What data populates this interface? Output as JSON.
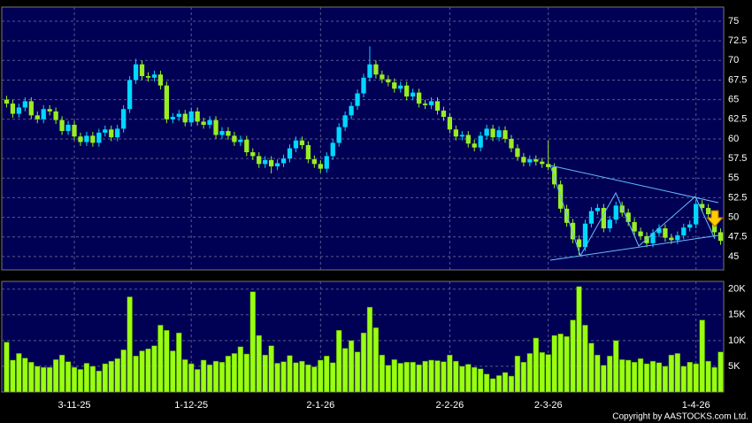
{
  "chart_data": [
    {
      "type": "candlestick",
      "categories": [
        null,
        null,
        null,
        null,
        null,
        null,
        null,
        null,
        null,
        null,
        null,
        "3-11-25",
        null,
        null,
        null,
        null,
        null,
        null,
        null,
        null,
        null,
        null,
        null,
        null,
        null,
        null,
        null,
        null,
        null,
        null,
        "1-12-25",
        null,
        null,
        null,
        null,
        null,
        null,
        null,
        null,
        null,
        null,
        null,
        null,
        null,
        null,
        null,
        null,
        null,
        null,
        null,
        null,
        "2-1-26",
        null,
        null,
        null,
        null,
        null,
        null,
        null,
        null,
        null,
        null,
        null,
        null,
        null,
        null,
        null,
        null,
        null,
        null,
        null,
        null,
        "2-2-26",
        null,
        null,
        null,
        null,
        null,
        null,
        null,
        null,
        null,
        null,
        null,
        null,
        null,
        null,
        null,
        "2-3-26",
        null,
        null,
        null,
        null,
        null,
        null,
        null,
        null,
        null,
        null,
        null,
        null,
        null,
        null,
        null,
        null,
        null,
        null,
        null,
        null,
        null,
        null,
        null,
        "1-4-26",
        null,
        null,
        null,
        null
      ],
      "open": [
        65,
        64.5,
        63.2,
        64,
        64.8,
        63,
        62.5,
        63.8,
        63.5,
        62.4,
        61,
        61.8,
        60.3,
        59.6,
        60.4,
        59.5,
        60.8,
        61.2,
        60.2,
        61.3,
        63.8,
        67.5,
        69.5,
        68,
        67.8,
        68.2,
        66.8,
        62.5,
        62.8,
        63.2,
        62.1,
        63.5,
        62.2,
        61.8,
        62.4,
        60.5,
        61,
        60.4,
        59.6,
        59.9,
        58.3,
        57.8,
        56.8,
        57.3,
        56.5,
        56.9,
        57.5,
        58.8,
        59.8,
        59.2,
        57.4,
        56.8,
        56.2,
        57.8,
        59.5,
        61.5,
        63,
        64.2,
        65.8,
        67.8,
        69.5,
        68.2,
        67.6,
        67.2,
        66.4,
        66.8,
        65.4,
        65.9,
        64.5,
        64.3,
        64.8,
        63.6,
        62.8,
        61.2,
        60.3,
        60.5,
        59.4,
        58.9,
        60.4,
        61.3,
        60.2,
        61.1,
        60,
        58.8,
        57.7,
        57,
        57.4,
        57.1,
        56.8,
        56.4,
        54.2,
        51.1,
        49.3,
        47.2,
        46.2,
        49.2,
        50.8,
        51.2,
        48.6,
        49.7,
        51.5,
        50.6,
        49.4,
        48.2,
        47.6,
        46.7,
        48,
        48.6,
        47.4,
        47.1,
        47.7,
        48.7,
        49.1,
        51.7,
        51.2,
        50.4,
        48.1
      ],
      "high": [
        65.5,
        65,
        64.5,
        65.3,
        65.3,
        63.5,
        64.3,
        64.3,
        64,
        62.9,
        62.3,
        62.3,
        60.8,
        60.9,
        60.9,
        61.3,
        61.7,
        61.7,
        61.8,
        64.3,
        68,
        70.2,
        70,
        68.5,
        68.7,
        68.7,
        67.3,
        63.3,
        63.7,
        63.7,
        64,
        64,
        62.7,
        62.9,
        62.9,
        61.5,
        61.5,
        60.9,
        60.4,
        60.4,
        58.8,
        58.3,
        57.8,
        57.8,
        57.4,
        58,
        59.3,
        60.3,
        60.3,
        59.7,
        57.9,
        57.3,
        58.3,
        60,
        62,
        63.5,
        64.7,
        66.3,
        68.3,
        71.8,
        70,
        68.7,
        68.1,
        67.7,
        67.3,
        67.3,
        66.4,
        66.4,
        65,
        65.3,
        65.3,
        64.1,
        63.3,
        61.7,
        61,
        61,
        59.9,
        60.9,
        61.8,
        61.8,
        61.6,
        61.6,
        60.5,
        59.3,
        58.2,
        57.9,
        57.9,
        57.6,
        59.8,
        56.9,
        54.7,
        51.6,
        49.8,
        47.7,
        49.7,
        51.3,
        51.7,
        51.7,
        50.2,
        52,
        52,
        51.1,
        49.9,
        48.7,
        48.1,
        48.5,
        49.1,
        49.1,
        47.9,
        48.2,
        49.2,
        49.6,
        52.2,
        52.2,
        51.7,
        50.9,
        48.6
      ],
      "low": [
        64,
        62.7,
        62.7,
        63.5,
        62.5,
        62,
        62,
        63,
        61.9,
        60.5,
        60.5,
        59.8,
        59.1,
        59.1,
        59,
        59,
        60.3,
        59.7,
        59.7,
        60.8,
        63.3,
        67,
        67.5,
        67.3,
        67.3,
        66.3,
        62,
        62,
        62.3,
        61.6,
        61.6,
        61.7,
        61.3,
        61.3,
        60,
        60,
        59.9,
        59.1,
        59.1,
        57.8,
        57.3,
        56.3,
        56.3,
        55.6,
        56,
        56.4,
        57,
        58.3,
        58.7,
        56.9,
        56.3,
        55.7,
        55.7,
        57.3,
        59,
        61,
        62.5,
        63.7,
        65.3,
        67.3,
        67.7,
        67.1,
        66.7,
        65.9,
        65.9,
        64.9,
        64.9,
        64,
        63.8,
        63.8,
        63.1,
        62.3,
        60.7,
        59.8,
        59.8,
        58.9,
        58.4,
        58.4,
        59.9,
        59.7,
        59.7,
        59.5,
        58.3,
        57.2,
        56.5,
        56.5,
        56.6,
        56.3,
        56,
        53.7,
        50.6,
        48.8,
        46.7,
        45.2,
        45.7,
        48.7,
        50.3,
        48.1,
        48.1,
        49.2,
        50.1,
        48.9,
        47.7,
        47.1,
        46.2,
        46.2,
        47.5,
        46.9,
        46.6,
        46.6,
        47.2,
        48.2,
        48.6,
        50.7,
        49.9,
        47.6,
        46.5
      ],
      "close": [
        64.5,
        63.2,
        64,
        64.8,
        63,
        62.5,
        63.8,
        63.5,
        62.4,
        61,
        61.8,
        60.3,
        59.6,
        60.4,
        59.5,
        60.8,
        61.2,
        60.2,
        61.3,
        63.8,
        67.5,
        69.5,
        68,
        67.8,
        68.2,
        66.8,
        62.5,
        62.8,
        63.2,
        62.1,
        63.5,
        62.2,
        61.8,
        62.4,
        60.5,
        61,
        60.4,
        59.6,
        59.9,
        58.3,
        57.8,
        56.8,
        57.3,
        56.5,
        56.9,
        57.5,
        58.8,
        59.8,
        59.2,
        57.4,
        56.8,
        56.2,
        57.8,
        59.5,
        61.5,
        63,
        64.2,
        65.8,
        67.8,
        69.5,
        68.2,
        67.6,
        67.2,
        66.4,
        66.8,
        65.4,
        65.9,
        64.5,
        64.3,
        64.8,
        63.6,
        62.8,
        61.2,
        60.3,
        60.5,
        59.4,
        58.9,
        60.4,
        61.3,
        60.2,
        61.1,
        60,
        58.8,
        57.7,
        57,
        57.4,
        57.1,
        56.8,
        56.4,
        54.2,
        51.1,
        49.3,
        47.2,
        46.2,
        49.2,
        50.8,
        51.2,
        48.6,
        49.7,
        51.5,
        50.6,
        49.4,
        48.2,
        47.6,
        46.7,
        48,
        48.6,
        47.4,
        47.1,
        47.7,
        48.7,
        49.1,
        51.7,
        51.2,
        50.4,
        48.1,
        47
      ],
      "up_color": "#00d8ff",
      "down_color": "#99ee22",
      "ylim": [
        43.3,
        76.8
      ],
      "yticks": [
        45,
        47.5,
        50,
        52.5,
        55,
        57.5,
        60,
        62.5,
        65,
        67.5,
        70,
        72.5,
        75
      ],
      "grid": true
    },
    {
      "type": "bar",
      "values": [
        9700,
        6200,
        7500,
        6600,
        5800,
        5000,
        4800,
        4800,
        6300,
        7200,
        5900,
        4800,
        4400,
        5600,
        5000,
        4100,
        5500,
        6000,
        6500,
        8200,
        18500,
        7000,
        8000,
        8400,
        9000,
        13000,
        12000,
        8000,
        11500,
        6300,
        5500,
        4400,
        6200,
        5300,
        6000,
        5800,
        7000,
        7500,
        8800,
        7400,
        19500,
        11000,
        7200,
        9000,
        5600,
        5900,
        7100,
        5700,
        6000,
        5300,
        4900,
        6200,
        7000,
        5700,
        12000,
        8500,
        10000,
        7800,
        11500,
        16500,
        12500,
        7200,
        5200,
        6300,
        5600,
        5800,
        5800,
        5300,
        6000,
        6200,
        6100,
        5900,
        7200,
        6000,
        5000,
        5400,
        4800,
        4500,
        3500,
        2600,
        3200,
        3800,
        3100,
        7000,
        5800,
        7500,
        10500,
        7700,
        7300,
        11000,
        11300,
        10800,
        14000,
        20500,
        13000,
        9500,
        7200,
        5200,
        7000,
        10000,
        6300,
        6200,
        5800,
        6500,
        5500,
        6000,
        5700,
        5000,
        7200,
        7500,
        5000,
        5800,
        5500,
        14000,
        6000,
        4800,
        7800
      ],
      "color": "#99ff11",
      "ylim": [
        0,
        21500
      ],
      "yticks": [
        {
          "value": 5000,
          "label": "5K"
        },
        {
          "value": 10000,
          "label": "10K"
        },
        {
          "value": 15000,
          "label": "15K"
        },
        {
          "value": 20000,
          "label": "20K"
        }
      ],
      "grid": true
    }
  ],
  "footer": "Copyright by AASTOCKS.com Ltd."
}
